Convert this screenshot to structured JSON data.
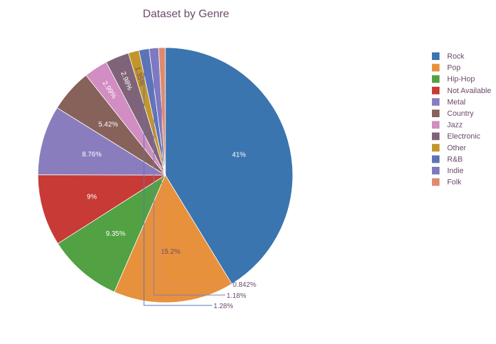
{
  "chart_data": {
    "type": "pie",
    "title": "Dataset by Genre",
    "categories": [
      "Rock",
      "Pop",
      "Hip-Hop",
      "Not Available",
      "Metal",
      "Country",
      "Jazz",
      "Electronic",
      "Other",
      "R&B",
      "Indie",
      "Folk"
    ],
    "values": [
      41,
      15.2,
      9.35,
      9,
      8.76,
      5.42,
      2.99,
      2.98,
      1.35,
      1.28,
      1.18,
      0.842
    ],
    "labels": [
      "41%",
      "15.2%",
      "9.35%",
      "9%",
      "8.76%",
      "5.42%",
      "2.99%",
      "2.98%",
      "1.35%",
      "1.28%",
      "1.18%",
      "0.842%"
    ],
    "colors": [
      "#3a75b0",
      "#e8913c",
      "#52a143",
      "#c83a36",
      "#8a7dbd",
      "#87625a",
      "#d28dc2",
      "#7f6479",
      "#c3962a",
      "#5d73b8",
      "#7e79c2",
      "#df8a70"
    ],
    "legend": "right",
    "direction": "clockwise"
  }
}
